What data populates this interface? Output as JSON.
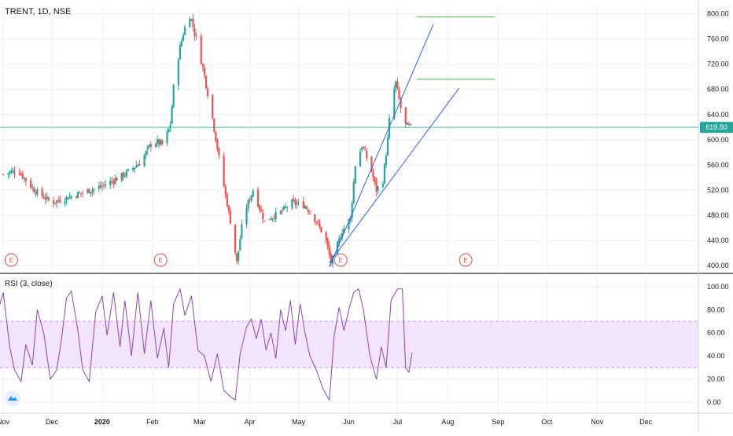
{
  "header": {
    "symbol": "TRENT, 1D, NSE"
  },
  "rsi_panel": {
    "title": "RSI (3, close)"
  },
  "current_price": "619.50",
  "icons": {
    "logo": "tradingview-logo-icon",
    "earnings": "earnings-e-icon"
  },
  "colors": {
    "up": "#26a69a",
    "down": "#ef5350",
    "rsi_line": "#8e44ad",
    "rsi_band": "#f3e5fb",
    "channel": "#2962ff",
    "target": "#4caf50",
    "current": "#26a69a"
  },
  "chart_data": [
    {
      "type": "candlestick",
      "title": "TRENT, 1D, NSE",
      "ylim": [
        390,
        812
      ],
      "yticks": [
        400,
        440,
        480,
        520,
        560,
        600,
        640,
        680,
        720,
        760,
        800
      ],
      "ytick_labels": [
        "400.00",
        "440.00",
        "480.00",
        "520.00",
        "560.00",
        "600.00",
        "640.00",
        "680.00",
        "720.00",
        "760.00",
        "800.00"
      ],
      "x_labels": [
        "Nov",
        "Dec",
        "2020",
        "Feb",
        "Mar",
        "Apr",
        "May",
        "Jun",
        "Jul",
        "Aug",
        "Sep",
        "Oct",
        "Nov",
        "Dec"
      ],
      "close_path": [
        [
          "2019-11-01",
          545
        ],
        [
          "2019-11-10",
          552
        ],
        [
          "2019-11-20",
          520
        ],
        [
          "2019-12-01",
          500
        ],
        [
          "2019-12-15",
          512
        ],
        [
          "2019-12-31",
          525
        ],
        [
          "2020-01-15",
          545
        ],
        [
          "2020-01-25",
          565
        ],
        [
          "2020-02-01",
          598
        ],
        [
          "2020-02-08",
          592
        ],
        [
          "2020-02-12",
          625
        ],
        [
          "2020-02-15",
          710
        ],
        [
          "2020-02-20",
          770
        ],
        [
          "2020-02-24",
          800
        ],
        [
          "2020-03-01",
          740
        ],
        [
          "2020-03-08",
          650
        ],
        [
          "2020-03-14",
          555
        ],
        [
          "2020-03-20",
          470
        ],
        [
          "2020-03-24",
          405
        ],
        [
          "2020-03-28",
          480
        ],
        [
          "2020-04-03",
          520
        ],
        [
          "2020-04-10",
          470
        ],
        [
          "2020-04-20",
          485
        ],
        [
          "2020-04-27",
          500
        ],
        [
          "2020-05-05",
          495
        ],
        [
          "2020-05-12",
          470
        ],
        [
          "2020-05-18",
          440
        ],
        [
          "2020-05-21",
          405
        ],
        [
          "2020-05-28",
          455
        ],
        [
          "2020-06-02",
          475
        ],
        [
          "2020-06-05",
          560
        ],
        [
          "2020-06-09",
          590
        ],
        [
          "2020-06-14",
          560
        ],
        [
          "2020-06-18",
          520
        ],
        [
          "2020-06-22",
          535
        ],
        [
          "2020-06-25",
          600
        ],
        [
          "2020-06-27",
          660
        ],
        [
          "2020-06-30",
          690
        ],
        [
          "2020-07-03",
          650
        ],
        [
          "2020-07-06",
          622
        ],
        [
          "2020-07-09",
          619.5
        ]
      ],
      "current_price": 619.5,
      "earnings_markers": [
        "2019-11-06",
        "2020-02-06",
        "2020-05-27",
        "2020-08-12"
      ],
      "channel_lines": [
        {
          "start": [
            "2020-05-20",
            398
          ],
          "end": [
            "2020-07-23",
            783
          ]
        },
        {
          "start": [
            "2020-05-20",
            404
          ],
          "end": [
            "2020-08-08",
            682
          ]
        },
        {
          "start": [
            "2020-05-20",
            404
          ],
          "end": [
            "2020-05-20",
            404
          ]
        }
      ],
      "target_levels": [
        {
          "value": 795,
          "from": "2020-07-13",
          "to": "2020-08-30"
        },
        {
          "value": 696,
          "from": "2020-07-13",
          "to": "2020-08-30"
        }
      ]
    },
    {
      "type": "line",
      "title": "RSI (3, close)",
      "ylim": [
        -6,
        108
      ],
      "yticks": [
        0,
        20,
        40,
        60,
        80,
        100
      ],
      "ytick_labels": [
        "0.00",
        "20.00",
        "40.00",
        "60.00",
        "80.00",
        "100.00"
      ],
      "band": [
        30,
        70
      ],
      "x_labels": [
        "Nov",
        "Dec",
        "2020",
        "Feb",
        "Mar",
        "Apr",
        "May",
        "Jun",
        "Jul",
        "Aug",
        "Sep",
        "Oct",
        "Nov",
        "Dec"
      ],
      "path": [
        [
          "2019-10-28",
          75
        ],
        [
          "2019-11-01",
          95
        ],
        [
          "2019-11-05",
          48
        ],
        [
          "2019-11-08",
          28
        ],
        [
          "2019-11-12",
          18
        ],
        [
          "2019-11-15",
          50
        ],
        [
          "2019-11-19",
          32
        ],
        [
          "2019-11-22",
          80
        ],
        [
          "2019-11-26",
          60
        ],
        [
          "2019-11-30",
          20
        ],
        [
          "2019-12-04",
          28
        ],
        [
          "2019-12-07",
          55
        ],
        [
          "2019-12-10",
          90
        ],
        [
          "2019-12-13",
          96
        ],
        [
          "2019-12-17",
          62
        ],
        [
          "2019-12-20",
          28
        ],
        [
          "2019-12-24",
          18
        ],
        [
          "2019-12-28",
          78
        ],
        [
          "2020-01-01",
          92
        ],
        [
          "2020-01-04",
          58
        ],
        [
          "2020-01-08",
          95
        ],
        [
          "2020-01-12",
          48
        ],
        [
          "2020-01-15",
          88
        ],
        [
          "2020-01-19",
          40
        ],
        [
          "2020-01-23",
          95
        ],
        [
          "2020-01-27",
          42
        ],
        [
          "2020-01-31",
          88
        ],
        [
          "2020-02-04",
          38
        ],
        [
          "2020-02-08",
          64
        ],
        [
          "2020-02-11",
          30
        ],
        [
          "2020-02-14",
          85
        ],
        [
          "2020-02-18",
          98
        ],
        [
          "2020-02-21",
          75
        ],
        [
          "2020-02-25",
          92
        ],
        [
          "2020-02-29",
          45
        ],
        [
          "2020-03-04",
          40
        ],
        [
          "2020-03-08",
          18
        ],
        [
          "2020-03-12",
          42
        ],
        [
          "2020-03-16",
          10
        ],
        [
          "2020-03-20",
          5
        ],
        [
          "2020-03-23",
          2
        ],
        [
          "2020-03-26",
          42
        ],
        [
          "2020-03-30",
          65
        ],
        [
          "2020-04-02",
          72
        ],
        [
          "2020-04-05",
          55
        ],
        [
          "2020-04-08",
          72
        ],
        [
          "2020-04-11",
          45
        ],
        [
          "2020-04-14",
          60
        ],
        [
          "2020-04-17",
          38
        ],
        [
          "2020-04-20",
          80
        ],
        [
          "2020-04-23",
          62
        ],
        [
          "2020-04-26",
          88
        ],
        [
          "2020-04-29",
          50
        ],
        [
          "2020-05-02",
          85
        ],
        [
          "2020-05-05",
          60
        ],
        [
          "2020-05-08",
          40
        ],
        [
          "2020-05-12",
          28
        ],
        [
          "2020-05-16",
          12
        ],
        [
          "2020-05-20",
          2
        ],
        [
          "2020-05-23",
          58
        ],
        [
          "2020-05-26",
          82
        ],
        [
          "2020-05-29",
          62
        ],
        [
          "2020-06-01",
          80
        ],
        [
          "2020-06-04",
          95
        ],
        [
          "2020-06-07",
          98
        ],
        [
          "2020-06-10",
          80
        ],
        [
          "2020-06-14",
          40
        ],
        [
          "2020-06-18",
          20
        ],
        [
          "2020-06-21",
          48
        ],
        [
          "2020-06-24",
          30
        ],
        [
          "2020-06-27",
          88
        ],
        [
          "2020-07-01",
          98
        ],
        [
          "2020-07-04",
          98
        ],
        [
          "2020-07-06",
          30
        ],
        [
          "2020-07-08",
          26
        ],
        [
          "2020-07-10",
          43
        ]
      ]
    }
  ]
}
